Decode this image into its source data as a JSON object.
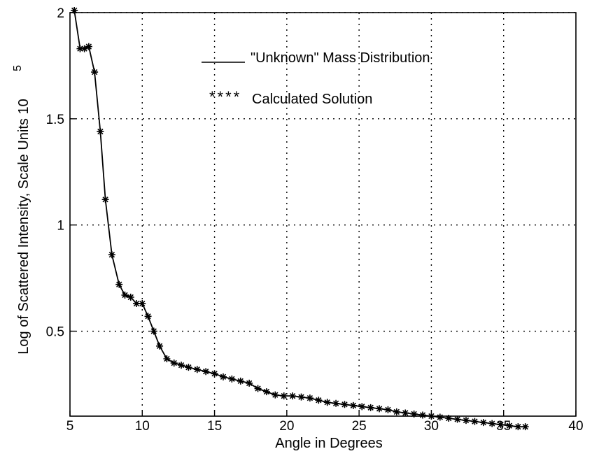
{
  "chart_data": {
    "type": "line",
    "title": "",
    "xlabel": "Angle in Degrees",
    "ylabel": "Log of Scattered Intensity, Scale Units 10",
    "ylabel_superscript": "5",
    "xlim": [
      5,
      40
    ],
    "ylim": [
      0.1,
      2.0
    ],
    "xticks": [
      5,
      10,
      15,
      20,
      25,
      30,
      35,
      40
    ],
    "yticks": [
      0.5,
      1,
      1.5,
      2
    ],
    "ytick_labels": [
      "0.5",
      "1",
      "1.5",
      "2"
    ],
    "grid": true,
    "legend_position": "top-right",
    "series": [
      {
        "name": "\"Unknown\" Mass Distribution",
        "style": "solid",
        "x": [
          5.3,
          5.7,
          6.0,
          6.3,
          6.7,
          7.1,
          7.45,
          7.9,
          8.4,
          8.8,
          9.2,
          9.6,
          10.0,
          10.4,
          10.8,
          11.2,
          11.7,
          12.2,
          12.7,
          13.2,
          13.8,
          14.4,
          15.0,
          15.6,
          16.2,
          16.8,
          17.4,
          18.0,
          18.6,
          19.2,
          19.8,
          20.4,
          21.0,
          21.6,
          22.2,
          22.8,
          23.4,
          24.0,
          24.6,
          25.2,
          25.8,
          26.4,
          27.0,
          27.6,
          28.2,
          28.8,
          29.4,
          30.0,
          30.6,
          31.2,
          31.8,
          32.4,
          33.0,
          33.6,
          34.2,
          34.8,
          35.4,
          36.0,
          36.5
        ],
        "y": [
          2.01,
          1.83,
          1.83,
          1.84,
          1.72,
          1.44,
          1.12,
          0.86,
          0.72,
          0.67,
          0.66,
          0.63,
          0.63,
          0.57,
          0.5,
          0.43,
          0.37,
          0.35,
          0.34,
          0.33,
          0.32,
          0.31,
          0.3,
          0.285,
          0.275,
          0.265,
          0.255,
          0.23,
          0.215,
          0.2,
          0.195,
          0.195,
          0.19,
          0.185,
          0.175,
          0.165,
          0.16,
          0.155,
          0.15,
          0.145,
          0.14,
          0.135,
          0.13,
          0.12,
          0.115,
          0.11,
          0.105,
          0.1,
          0.095,
          0.09,
          0.085,
          0.08,
          0.075,
          0.07,
          0.065,
          0.06,
          0.055,
          0.05,
          0.05
        ]
      },
      {
        "name": "Calculated Solution",
        "style": "star-markers",
        "x": [
          5.3,
          5.7,
          6.0,
          6.3,
          6.7,
          7.1,
          7.45,
          7.9,
          8.4,
          8.8,
          9.2,
          9.6,
          10.0,
          10.4,
          10.8,
          11.2,
          11.7,
          12.2,
          12.7,
          13.2,
          13.8,
          14.4,
          15.0,
          15.6,
          16.2,
          16.8,
          17.4,
          18.0,
          18.6,
          19.2,
          19.8,
          20.4,
          21.0,
          21.6,
          22.2,
          22.8,
          23.4,
          24.0,
          24.6,
          25.2,
          25.8,
          26.4,
          27.0,
          27.6,
          28.2,
          28.8,
          29.4,
          30.0,
          30.6,
          31.2,
          31.8,
          32.4,
          33.0,
          33.6,
          34.2,
          34.8,
          35.4,
          36.0,
          36.5
        ],
        "y": [
          2.01,
          1.83,
          1.83,
          1.84,
          1.72,
          1.44,
          1.12,
          0.86,
          0.72,
          0.67,
          0.66,
          0.63,
          0.63,
          0.57,
          0.5,
          0.43,
          0.37,
          0.35,
          0.34,
          0.33,
          0.32,
          0.31,
          0.3,
          0.285,
          0.275,
          0.265,
          0.255,
          0.23,
          0.215,
          0.2,
          0.195,
          0.195,
          0.19,
          0.185,
          0.175,
          0.165,
          0.16,
          0.155,
          0.15,
          0.145,
          0.14,
          0.135,
          0.13,
          0.12,
          0.115,
          0.11,
          0.105,
          0.1,
          0.095,
          0.09,
          0.085,
          0.08,
          0.075,
          0.07,
          0.065,
          0.06,
          0.055,
          0.05,
          0.05
        ]
      }
    ],
    "legend": {
      "line_entry": "\"Unknown\" Mass Distribution",
      "marker_entry": "Calculated Solution"
    }
  }
}
